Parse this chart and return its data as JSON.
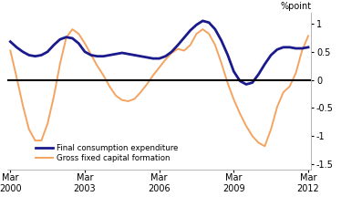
{
  "ylabel": "%point",
  "ylim": [
    -1.6,
    1.2
  ],
  "yticks": [
    -1.5,
    -1.0,
    -0.5,
    0,
    0.5,
    1.0
  ],
  "background_color": "#ffffff",
  "zero_line_color": "#000000",
  "fce_color": "#1a1a8c",
  "gfcf_color": "#f4a460",
  "fce_label": "Final consumption expenditure",
  "gfcf_label": "Gross fixed capital formation",
  "fce_linewidth": 2.0,
  "gfcf_linewidth": 1.4,
  "xtick_labels": [
    "Mar\n2000",
    "Mar\n2003",
    "Mar\n2006",
    "Mar\n2009",
    "Mar\n2012"
  ],
  "xtick_positions": [
    0,
    12,
    24,
    36,
    48
  ],
  "fce_x": [
    0,
    1,
    2,
    3,
    4,
    5,
    6,
    7,
    8,
    9,
    10,
    11,
    12,
    13,
    14,
    15,
    16,
    17,
    18,
    19,
    20,
    21,
    22,
    23,
    24,
    25,
    26,
    27,
    28,
    29,
    30,
    31,
    32,
    33,
    34,
    35,
    36,
    37,
    38,
    39,
    40,
    41,
    42,
    43,
    44,
    45,
    46,
    47,
    48
  ],
  "fce_y": [
    0.68,
    0.58,
    0.5,
    0.44,
    0.42,
    0.44,
    0.5,
    0.62,
    0.72,
    0.76,
    0.74,
    0.65,
    0.5,
    0.44,
    0.42,
    0.42,
    0.44,
    0.46,
    0.48,
    0.46,
    0.44,
    0.42,
    0.4,
    0.38,
    0.38,
    0.42,
    0.5,
    0.62,
    0.75,
    0.88,
    0.98,
    1.05,
    1.02,
    0.9,
    0.7,
    0.45,
    0.15,
    -0.02,
    -0.08,
    -0.05,
    0.1,
    0.28,
    0.44,
    0.54,
    0.58,
    0.58,
    0.56,
    0.56,
    0.58
  ],
  "gfcf_x": [
    0,
    1,
    2,
    3,
    4,
    5,
    6,
    7,
    8,
    9,
    10,
    11,
    12,
    13,
    14,
    15,
    16,
    17,
    18,
    19,
    20,
    21,
    22,
    23,
    24,
    25,
    26,
    27,
    28,
    29,
    30,
    31,
    32,
    33,
    34,
    35,
    36,
    37,
    38,
    39,
    40,
    41,
    42,
    43,
    44,
    45,
    46,
    47,
    48
  ],
  "gfcf_y": [
    0.52,
    0.05,
    -0.45,
    -0.88,
    -1.08,
    -1.08,
    -0.78,
    -0.3,
    0.28,
    0.75,
    0.9,
    0.82,
    0.65,
    0.45,
    0.25,
    0.08,
    -0.12,
    -0.28,
    -0.36,
    -0.38,
    -0.34,
    -0.22,
    -0.08,
    0.08,
    0.22,
    0.36,
    0.48,
    0.55,
    0.52,
    0.62,
    0.82,
    0.9,
    0.82,
    0.62,
    0.3,
    -0.05,
    -0.35,
    -0.6,
    -0.82,
    -1.0,
    -1.12,
    -1.18,
    -0.88,
    -0.48,
    -0.22,
    -0.12,
    0.12,
    0.52,
    0.78
  ]
}
